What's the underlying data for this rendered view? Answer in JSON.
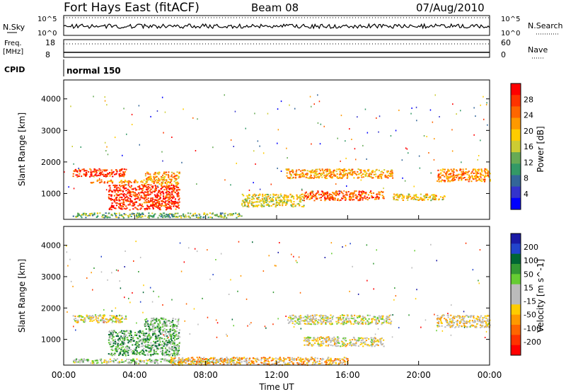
{
  "header": {
    "station": "Fort Hays East (fitACF)",
    "beam": "Beam 08",
    "date": "07/Aug/2010"
  },
  "top_panels": {
    "nsky_label": "N.Sky",
    "nsky_top": "10^5",
    "nsky_bottom": "10^0",
    "nsearch_label": "N.Search",
    "nsearch_top": "10^5",
    "nsearch_bottom": "10^0",
    "freq_label": "Freq.",
    "freq_unit": "[MHz]",
    "freq_top": "18",
    "freq_bottom": "8",
    "nave_label": "Nave",
    "nave_top": "60",
    "nave_bottom": "0",
    "cpid_label": "CPID",
    "cpid_value": "normal 150"
  },
  "axes": {
    "ylabel": "Slant Range [km]",
    "xlabel": "Time UT",
    "yticks": [
      "4000",
      "3000",
      "2000",
      "1000"
    ],
    "xticks": [
      "00:00",
      "04:00",
      "08:00",
      "12:00",
      "16:00",
      "20:00",
      "00:00"
    ]
  },
  "power_colorbar": {
    "label": "Power [dB]",
    "ticks": [
      "28",
      "24",
      "20",
      "16",
      "12",
      "8",
      "4"
    ],
    "colors": [
      "#ff0000",
      "#ff3300",
      "#ff6600",
      "#ff9900",
      "#ffcc00",
      "#cccc33",
      "#66aa55",
      "#339966",
      "#336699",
      "#3333cc",
      "#0000ff"
    ]
  },
  "velocity_colorbar": {
    "label": "Velocity [m s^-1]",
    "ticks": [
      "200",
      "100",
      "50",
      "15",
      "-15",
      "-50",
      "-100",
      "-200"
    ],
    "colors": [
      "#1a1aa6",
      "#2244cc",
      "#006633",
      "#339933",
      "#66cc33",
      "#bbbbbb",
      "#bbbbbb",
      "#ffcc00",
      "#ff9900",
      "#ff6600",
      "#ff3300",
      "#ff0000"
    ]
  },
  "chart_data": {
    "type": "heatmap",
    "title": "Fort Hays East (fitACF)",
    "xlabel": "Time UT",
    "ylabel": "Slant Range [km]",
    "xlim": [
      "00:00",
      "24:00"
    ],
    "ylim": [
      180,
      4600
    ],
    "panels": [
      {
        "name": "Power [dB]",
        "scale": [
          0,
          30
        ],
        "regions": [
          {
            "t": [
              0.5,
              3.5
            ],
            "r": [
              1550,
              1800
            ],
            "v": 26
          },
          {
            "t": [
              1.5,
              4.5
            ],
            "r": [
              1350,
              1450
            ],
            "v": 22
          },
          {
            "t": [
              2.5,
              6.5
            ],
            "r": [
              500,
              1300
            ],
            "v": 26
          },
          {
            "t": [
              4.5,
              6.5
            ],
            "r": [
              1300,
              1700
            ],
            "v": 20
          },
          {
            "t": [
              0.5,
              10.0
            ],
            "r": [
              250,
              400
            ],
            "v": 12
          },
          {
            "t": [
              10.0,
              13.5
            ],
            "r": [
              600,
              1000
            ],
            "v": 16
          },
          {
            "t": [
              12.5,
              18.5
            ],
            "r": [
              1500,
              1800
            ],
            "v": 20
          },
          {
            "t": [
              13.5,
              18.0
            ],
            "r": [
              800,
              1100
            ],
            "v": 24
          },
          {
            "t": [
              18.5,
              21.5
            ],
            "r": [
              800,
              1000
            ],
            "v": 18
          },
          {
            "t": [
              21.0,
              24.0
            ],
            "r": [
              1400,
              1800
            ],
            "v": 22
          }
        ]
      },
      {
        "name": "Velocity [m s-1]",
        "scale": [
          -200,
          200
        ],
        "regions": [
          {
            "t": [
              0.5,
              3.5
            ],
            "r": [
              1550,
              1800
            ],
            "v": -10
          },
          {
            "t": [
              2.5,
              6.5
            ],
            "r": [
              500,
              1300
            ],
            "v": 60
          },
          {
            "t": [
              4.5,
              6.5
            ],
            "r": [
              1300,
              1700
            ],
            "v": 40
          },
          {
            "t": [
              0.5,
              10.0
            ],
            "r": [
              250,
              400
            ],
            "v": 20
          },
          {
            "t": [
              6.0,
              16.0
            ],
            "r": [
              200,
              450
            ],
            "v": -60
          },
          {
            "t": [
              12.5,
              18.5
            ],
            "r": [
              1500,
              1800
            ],
            "v": -5
          },
          {
            "t": [
              13.5,
              18.0
            ],
            "r": [
              800,
              1100
            ],
            "v": -20
          },
          {
            "t": [
              21.0,
              24.0
            ],
            "r": [
              1400,
              1800
            ],
            "v": -30
          }
        ]
      }
    ]
  }
}
